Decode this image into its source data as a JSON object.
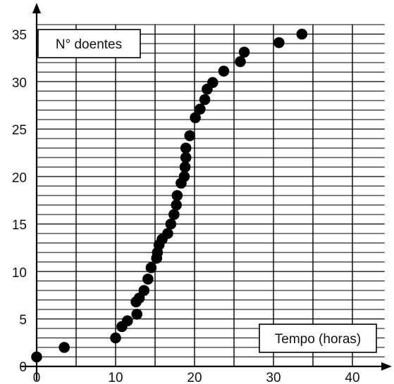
{
  "chart_data": {
    "type": "scatter",
    "title": "",
    "ylabel": "N° doentes",
    "xlabel": "Tempo (horas)",
    "xlim": [
      0,
      44
    ],
    "ylim": [
      0,
      36
    ],
    "x_ticks": [
      0,
      10,
      20,
      30,
      40
    ],
    "y_ticks": [
      0,
      5,
      10,
      15,
      20,
      25,
      30,
      35
    ],
    "x_tick_labels": [
      "0",
      "10",
      "20",
      "30",
      "40"
    ],
    "y_tick_labels": [
      "0",
      "5",
      "10",
      "15",
      "20",
      "25",
      "30",
      "35"
    ],
    "grid": true,
    "points": [
      {
        "x": 0.0,
        "y": 1
      },
      {
        "x": 3.5,
        "y": 2
      },
      {
        "x": 10.0,
        "y": 3
      },
      {
        "x": 10.8,
        "y": 4.2
      },
      {
        "x": 11.5,
        "y": 4.8
      },
      {
        "x": 12.7,
        "y": 5.5
      },
      {
        "x": 12.6,
        "y": 6.8
      },
      {
        "x": 13.0,
        "y": 7.2
      },
      {
        "x": 13.6,
        "y": 8.0
      },
      {
        "x": 14.1,
        "y": 9.2
      },
      {
        "x": 14.5,
        "y": 10.4
      },
      {
        "x": 15.2,
        "y": 11.4
      },
      {
        "x": 15.3,
        "y": 12.0
      },
      {
        "x": 15.5,
        "y": 12.8
      },
      {
        "x": 15.9,
        "y": 13.4
      },
      {
        "x": 16.6,
        "y": 14.0
      },
      {
        "x": 17.0,
        "y": 15.0
      },
      {
        "x": 17.4,
        "y": 16.0
      },
      {
        "x": 17.7,
        "y": 17.0
      },
      {
        "x": 17.8,
        "y": 18.0
      },
      {
        "x": 18.3,
        "y": 19.3
      },
      {
        "x": 18.7,
        "y": 20.0
      },
      {
        "x": 18.8,
        "y": 21.0
      },
      {
        "x": 18.9,
        "y": 22.0
      },
      {
        "x": 18.9,
        "y": 23.0
      },
      {
        "x": 19.4,
        "y": 24.3
      },
      {
        "x": 20.1,
        "y": 26.2
      },
      {
        "x": 20.7,
        "y": 27.1
      },
      {
        "x": 21.3,
        "y": 28.1
      },
      {
        "x": 21.6,
        "y": 29.2
      },
      {
        "x": 22.3,
        "y": 29.9
      },
      {
        "x": 23.7,
        "y": 31.1
      },
      {
        "x": 25.8,
        "y": 32.1
      },
      {
        "x": 26.3,
        "y": 33.1
      },
      {
        "x": 30.7,
        "y": 34.1
      },
      {
        "x": 33.6,
        "y": 35.0
      }
    ]
  }
}
